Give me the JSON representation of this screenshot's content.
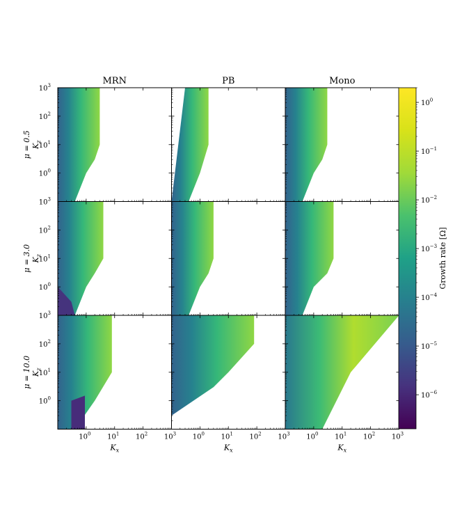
{
  "chart_data": {
    "type": "contour",
    "column_titles": [
      "MRN",
      "PB",
      "Mono"
    ],
    "row_labels": [
      "μ = 0.5",
      "μ = 3.0",
      "μ = 10.0"
    ],
    "ylabel_sym": "K",
    "ylabel_sub": "z",
    "xlabel_sym": "K",
    "xlabel_sub": "x",
    "x_ticks": [
      "10",
      "10",
      "10",
      "10"
    ],
    "x_tick_exp": [
      "0",
      "1",
      "2",
      "3"
    ],
    "y_ticks": [
      "10",
      "10",
      "10",
      "10"
    ],
    "y_tick_exp": [
      "0",
      "1",
      "2",
      "3"
    ],
    "xlim": [
      0.1,
      1000
    ],
    "ylim": [
      0.1,
      1000
    ],
    "x_scale": "log",
    "y_scale": "log",
    "colorbar": {
      "label": "Growth rate [Ω]",
      "scale": "log",
      "range": [
        2e-07,
        2
      ],
      "colormap": "viridis",
      "ticks": [
        "10",
        "10",
        "10",
        "10",
        "10",
        "10",
        "10"
      ],
      "tick_exp": [
        "0",
        "−1",
        "−2",
        "−3",
        "−4",
        "−5",
        "−6"
      ]
    },
    "panels": [
      {
        "row": 0,
        "col": 0,
        "edge": [
          [
            0.1,
            1000
          ],
          [
            3,
            1000
          ],
          [
            3,
            10
          ],
          [
            2,
            3
          ],
          [
            1,
            1
          ],
          [
            0.4,
            0.1
          ],
          [
            0.1,
            0.1
          ]
        ],
        "fill": "viridis-gradient"
      },
      {
        "row": 0,
        "col": 1,
        "edge": [
          [
            0.3,
            1000
          ],
          [
            2,
            1000
          ],
          [
            2,
            10
          ],
          [
            1,
            1
          ],
          [
            0.4,
            0.1
          ],
          [
            0.1,
            0.1
          ]
        ],
        "fill": "viridis-gradient"
      },
      {
        "row": 0,
        "col": 2,
        "edge": [
          [
            0.1,
            1000
          ],
          [
            3,
            1000
          ],
          [
            3,
            10
          ],
          [
            2,
            3
          ],
          [
            1,
            1
          ],
          [
            0.4,
            0.1
          ],
          [
            0.1,
            0.1
          ]
        ],
        "fill": "viridis-gradient"
      },
      {
        "row": 1,
        "col": 0,
        "edge": [
          [
            0.1,
            1000
          ],
          [
            4,
            1000
          ],
          [
            4,
            10
          ],
          [
            2,
            3
          ],
          [
            1,
            1
          ],
          [
            0.4,
            0.1
          ],
          [
            0.1,
            0.1
          ]
        ],
        "fill": "viridis-gradient"
      },
      {
        "row": 1,
        "col": 1,
        "edge": [
          [
            0.1,
            1000
          ],
          [
            3,
            1000
          ],
          [
            3,
            10
          ],
          [
            2,
            3
          ],
          [
            1,
            1
          ],
          [
            0.4,
            0.1
          ],
          [
            0.1,
            0.1
          ]
        ],
        "fill": "viridis-gradient"
      },
      {
        "row": 1,
        "col": 2,
        "edge": [
          [
            0.1,
            1000
          ],
          [
            5,
            1000
          ],
          [
            5,
            10
          ],
          [
            3,
            3
          ],
          [
            1,
            1
          ],
          [
            0.4,
            0.1
          ],
          [
            0.1,
            0.1
          ]
        ],
        "fill": "viridis-gradient"
      },
      {
        "row": 2,
        "col": 0,
        "edge": [
          [
            0.1,
            1000
          ],
          [
            8,
            1000
          ],
          [
            8,
            10
          ],
          [
            2,
            1
          ],
          [
            0.4,
            0.1
          ],
          [
            0.1,
            0.1
          ]
        ],
        "fill": "viridis-gradient"
      },
      {
        "row": 2,
        "col": 1,
        "edge": [
          [
            0.1,
            1000
          ],
          [
            80,
            1000
          ],
          [
            80,
            100
          ],
          [
            10,
            10
          ],
          [
            3,
            3
          ],
          [
            0.1,
            0.3
          ]
        ],
        "fill": "viridis-gradient"
      },
      {
        "row": 2,
        "col": 2,
        "edge": [
          [
            0.1,
            1000
          ],
          [
            1000,
            1000
          ],
          [
            20,
            10
          ],
          [
            2,
            0.1
          ],
          [
            0.1,
            0.1
          ]
        ],
        "fill": "viridis-gradient"
      }
    ]
  }
}
